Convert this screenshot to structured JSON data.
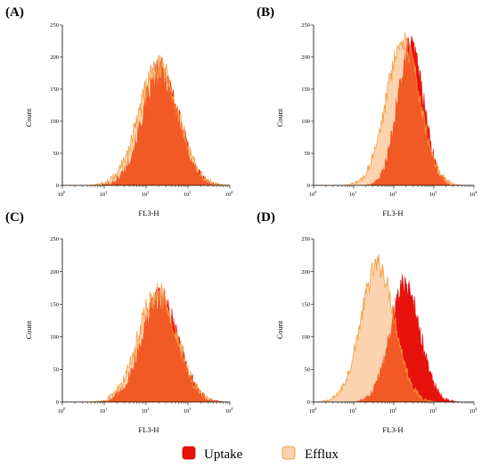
{
  "chart_data": [
    {
      "id": "A",
      "type": "area",
      "panel_label": "(A)",
      "xlabel": "FL3-H",
      "ylabel": "Count",
      "xscale": "log",
      "xlim": [
        1,
        10000
      ],
      "ylim": [
        0,
        250
      ],
      "xtick_exponents": [
        "0",
        "1",
        "2",
        "3",
        "4"
      ],
      "yticks": [
        0,
        50,
        100,
        150,
        200,
        250
      ],
      "series": [
        {
          "name": "Efflux",
          "peak_x": 200,
          "peak_y": 185,
          "spread_decades": 0.47,
          "noise": 22
        },
        {
          "name": "Uptake",
          "peak_x": 220,
          "peak_y": 178,
          "spread_decades": 0.44,
          "noise": 22
        }
      ]
    },
    {
      "id": "B",
      "type": "area",
      "panel_label": "(B)",
      "xlabel": "FL3-H",
      "ylabel": "Count",
      "xscale": "log",
      "xlim": [
        1,
        10000
      ],
      "ylim": [
        0,
        250
      ],
      "xtick_exponents": [
        "0",
        "1",
        "2",
        "3",
        "4"
      ],
      "yticks": [
        0,
        50,
        100,
        150,
        200,
        250
      ],
      "series": [
        {
          "name": "Uptake",
          "peak_x": 260,
          "peak_y": 218,
          "spread_decades": 0.33,
          "noise": 20
        },
        {
          "name": "Efflux",
          "peak_x": 170,
          "peak_y": 222,
          "spread_decades": 0.42,
          "noise": 20
        }
      ]
    },
    {
      "id": "C",
      "type": "area",
      "panel_label": "(C)",
      "xlabel": "FL3-H",
      "ylabel": "Count",
      "xscale": "log",
      "xlim": [
        1,
        10000
      ],
      "ylim": [
        0,
        250
      ],
      "xtick_exponents": [
        "0",
        "1",
        "2",
        "3",
        "4"
      ],
      "yticks": [
        0,
        50,
        100,
        150,
        200,
        250
      ],
      "series": [
        {
          "name": "Efflux",
          "peak_x": 190,
          "peak_y": 168,
          "spread_decades": 0.46,
          "noise": 20
        },
        {
          "name": "Uptake",
          "peak_x": 210,
          "peak_y": 162,
          "spread_decades": 0.44,
          "noise": 20
        }
      ]
    },
    {
      "id": "D",
      "type": "area",
      "panel_label": "(D)",
      "xlabel": "FL3-H",
      "ylabel": "Count",
      "xscale": "log",
      "xlim": [
        1,
        10000
      ],
      "ylim": [
        0,
        250
      ],
      "xtick_exponents": [
        "0",
        "1",
        "2",
        "3",
        "4"
      ],
      "yticks": [
        0,
        50,
        100,
        150,
        200,
        250
      ],
      "series": [
        {
          "name": "Efflux",
          "peak_x": 40,
          "peak_y": 210,
          "spread_decades": 0.42,
          "noise": 18
        },
        {
          "name": "Uptake",
          "peak_x": 190,
          "peak_y": 180,
          "spread_decades": 0.38,
          "noise": 20
        }
      ]
    }
  ],
  "legend": {
    "items": [
      {
        "label": "Uptake",
        "color": "#e8120c"
      },
      {
        "label": "Efflux",
        "color": "#fbd3ae"
      }
    ]
  },
  "colors": {
    "uptake_fill": "#e8120c",
    "efflux_fill": "#fbd3ae",
    "overlap_fill": "#f15a24",
    "efflux_stroke": "#f49a3c"
  }
}
